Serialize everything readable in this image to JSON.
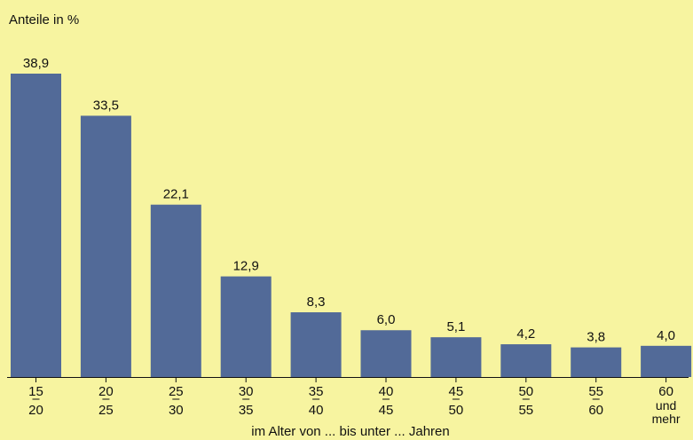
{
  "chart_data": {
    "type": "bar",
    "ylabel": "Anteile in %",
    "xlabel": "im Alter von ... bis unter ... Jahren",
    "categories": [
      {
        "top": "15",
        "bottom": "20"
      },
      {
        "top": "20",
        "bottom": "25"
      },
      {
        "top": "25",
        "bottom": "30"
      },
      {
        "top": "30",
        "bottom": "35"
      },
      {
        "top": "35",
        "bottom": "40"
      },
      {
        "top": "40",
        "bottom": "45"
      },
      {
        "top": "45",
        "bottom": "50"
      },
      {
        "top": "50",
        "bottom": "55"
      },
      {
        "top": "55",
        "bottom": "60"
      },
      {
        "top": "60",
        "bottom": "und mehr"
      }
    ],
    "values": [
      38.9,
      33.5,
      22.1,
      12.9,
      8.3,
      6.0,
      5.1,
      4.2,
      3.8,
      4.0
    ],
    "value_labels": [
      "38,9",
      "33,5",
      "22,1",
      "12,9",
      "8,3",
      "6,0",
      "5,1",
      "4,2",
      "3,8",
      "4,0"
    ],
    "ylim": [
      0,
      38.9
    ],
    "grid": false,
    "colors": {
      "bar": "#526a98",
      "background": "#f7f4a0",
      "axis": "#111111"
    }
  }
}
